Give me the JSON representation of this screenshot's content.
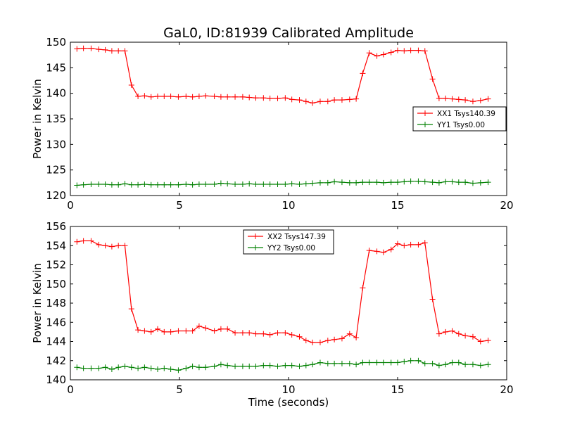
{
  "figure": {
    "title": "GaL0, ID:81939 Calibrated Amplitude",
    "xlabel": "Time (seconds)"
  },
  "chart_data": [
    {
      "type": "line",
      "ylabel": "Power in Kelvin",
      "xlabel": "",
      "xlim": [
        0,
        20
      ],
      "ylim": [
        120,
        150
      ],
      "xticks": [
        0,
        5,
        10,
        15,
        20
      ],
      "yticks": [
        120,
        125,
        130,
        135,
        140,
        145,
        150
      ],
      "grid": false,
      "legend_position": "center-right",
      "x": [
        0.3,
        0.6,
        0.95,
        1.3,
        1.6,
        1.9,
        2.2,
        2.5,
        2.8,
        3.1,
        3.4,
        3.7,
        4.0,
        4.3,
        4.6,
        4.95,
        5.3,
        5.6,
        5.9,
        6.2,
        6.6,
        6.9,
        7.2,
        7.55,
        7.9,
        8.2,
        8.5,
        8.85,
        9.15,
        9.5,
        9.85,
        10.15,
        10.5,
        10.8,
        11.1,
        11.45,
        11.8,
        12.1,
        12.45,
        12.8,
        13.1,
        13.4,
        13.7,
        14.05,
        14.35,
        14.7,
        15.0,
        15.3,
        15.6,
        15.95,
        16.25,
        16.6,
        16.9,
        17.2,
        17.5,
        17.8,
        18.1,
        18.45,
        18.8,
        19.15
      ],
      "series": [
        {
          "name": "XX1 Tsys140.39",
          "color": "#ff0000",
          "values": [
            148.7,
            148.8,
            148.8,
            148.6,
            148.5,
            148.3,
            148.3,
            148.3,
            141.6,
            139.4,
            139.5,
            139.3,
            139.4,
            139.4,
            139.4,
            139.3,
            139.4,
            139.3,
            139.4,
            139.5,
            139.4,
            139.3,
            139.3,
            139.3,
            139.3,
            139.2,
            139.1,
            139.1,
            139.0,
            139.0,
            139.1,
            138.8,
            138.7,
            138.4,
            138.1,
            138.4,
            138.4,
            138.7,
            138.7,
            138.8,
            138.9,
            143.9,
            147.9,
            147.3,
            147.6,
            148.0,
            148.4,
            148.3,
            148.4,
            148.4,
            148.3,
            142.8,
            139.0,
            139.0,
            138.9,
            138.8,
            138.7,
            138.4,
            138.6,
            138.9
          ]
        },
        {
          "name": "YY1 Tsys0.00",
          "color": "#008000",
          "values": [
            122.0,
            122.1,
            122.2,
            122.2,
            122.2,
            122.1,
            122.1,
            122.3,
            122.1,
            122.1,
            122.2,
            122.1,
            122.1,
            122.1,
            122.1,
            122.1,
            122.2,
            122.1,
            122.2,
            122.2,
            122.2,
            122.4,
            122.3,
            122.2,
            122.2,
            122.3,
            122.2,
            122.2,
            122.2,
            122.2,
            122.2,
            122.3,
            122.2,
            122.3,
            122.4,
            122.5,
            122.5,
            122.7,
            122.6,
            122.5,
            122.5,
            122.6,
            122.6,
            122.6,
            122.5,
            122.6,
            122.6,
            122.7,
            122.8,
            122.8,
            122.7,
            122.6,
            122.5,
            122.7,
            122.7,
            122.6,
            122.6,
            122.4,
            122.5,
            122.6
          ]
        }
      ]
    },
    {
      "type": "line",
      "ylabel": "Power in Kelvin",
      "xlabel": "Time (seconds)",
      "xlim": [
        0,
        20
      ],
      "ylim": [
        140,
        156
      ],
      "xticks": [
        0,
        5,
        10,
        15,
        20
      ],
      "yticks": [
        140,
        142,
        144,
        146,
        148,
        150,
        152,
        154,
        156
      ],
      "grid": false,
      "legend_position": "top-center",
      "x": [
        0.3,
        0.6,
        0.95,
        1.3,
        1.6,
        1.9,
        2.2,
        2.5,
        2.8,
        3.1,
        3.4,
        3.7,
        4.0,
        4.3,
        4.6,
        4.95,
        5.3,
        5.6,
        5.9,
        6.2,
        6.6,
        6.9,
        7.2,
        7.55,
        7.9,
        8.2,
        8.5,
        8.85,
        9.15,
        9.5,
        9.85,
        10.15,
        10.5,
        10.8,
        11.1,
        11.45,
        11.8,
        12.1,
        12.45,
        12.8,
        13.1,
        13.4,
        13.7,
        14.05,
        14.35,
        14.7,
        15.0,
        15.3,
        15.6,
        15.95,
        16.25,
        16.6,
        16.9,
        17.2,
        17.5,
        17.8,
        18.1,
        18.45,
        18.8,
        19.15
      ],
      "series": [
        {
          "name": "XX2 Tsys147.39",
          "color": "#ff0000",
          "values": [
            154.4,
            154.5,
            154.5,
            154.1,
            154.0,
            153.9,
            154.0,
            154.0,
            147.4,
            145.2,
            145.1,
            145.0,
            145.3,
            145.0,
            145.0,
            145.1,
            145.1,
            145.1,
            145.6,
            145.4,
            145.1,
            145.3,
            145.3,
            144.9,
            144.9,
            144.9,
            144.8,
            144.8,
            144.7,
            144.9,
            144.9,
            144.7,
            144.5,
            144.1,
            143.9,
            143.9,
            144.1,
            144.2,
            144.3,
            144.8,
            144.4,
            149.6,
            153.5,
            153.4,
            153.3,
            153.6,
            154.2,
            154.0,
            154.1,
            154.1,
            154.3,
            148.4,
            144.8,
            145.0,
            145.1,
            144.8,
            144.6,
            144.5,
            144.0,
            144.1
          ]
        },
        {
          "name": "YY2 Tsys0.00",
          "color": "#008000",
          "values": [
            141.3,
            141.2,
            141.2,
            141.2,
            141.3,
            141.1,
            141.3,
            141.4,
            141.3,
            141.2,
            141.3,
            141.2,
            141.1,
            141.2,
            141.1,
            141.0,
            141.2,
            141.4,
            141.3,
            141.3,
            141.4,
            141.6,
            141.5,
            141.4,
            141.4,
            141.4,
            141.4,
            141.5,
            141.5,
            141.4,
            141.5,
            141.5,
            141.4,
            141.5,
            141.6,
            141.8,
            141.7,
            141.7,
            141.7,
            141.7,
            141.6,
            141.8,
            141.8,
            141.8,
            141.8,
            141.8,
            141.8,
            141.9,
            142.0,
            142.0,
            141.7,
            141.7,
            141.5,
            141.6,
            141.8,
            141.8,
            141.6,
            141.6,
            141.5,
            141.6
          ]
        }
      ]
    }
  ]
}
